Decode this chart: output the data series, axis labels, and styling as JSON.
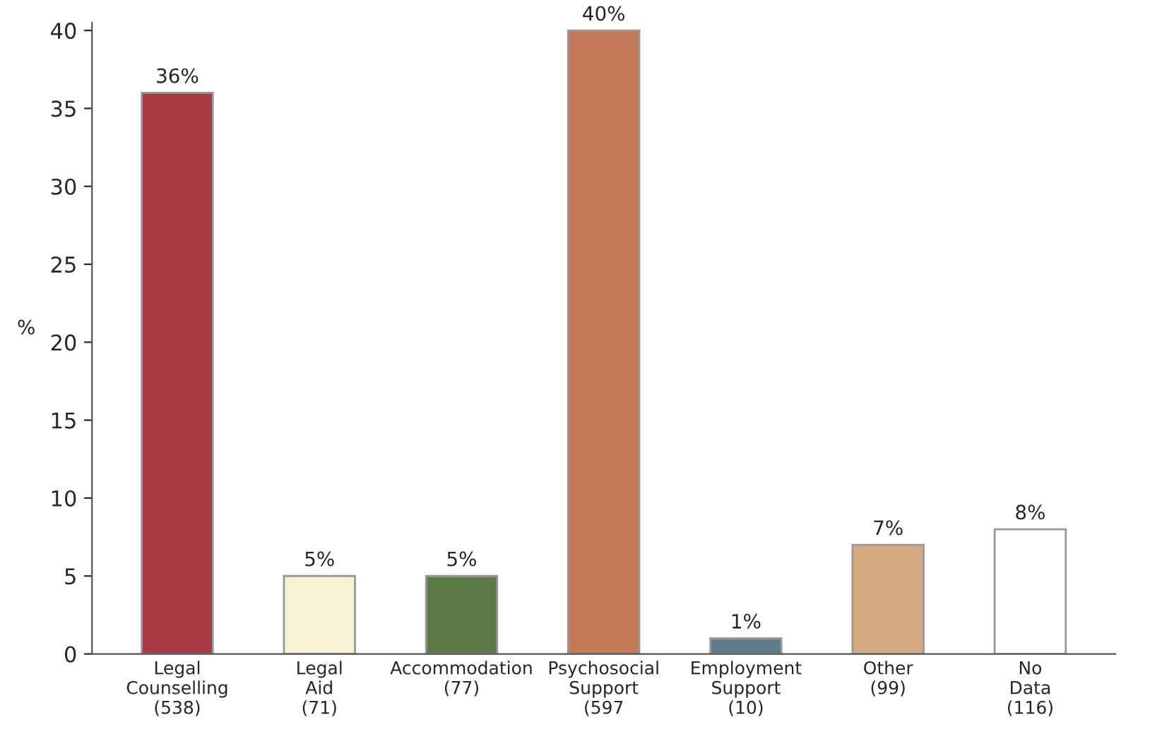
{
  "chart_data": {
    "type": "bar",
    "ylabel": "%",
    "categories": [
      "Legal\nCounselling\n(538)",
      "Legal\nAid\n(71)",
      "Accommodation\n(77)",
      "Psychosocial\nSupport\n(597",
      "Employment\nSupport\n(10)",
      "Other\n(99)",
      "No\nData\n(116)"
    ],
    "values": [
      36,
      5,
      5,
      40,
      1,
      7,
      8
    ],
    "colors": [
      "#a83a44",
      "#f7f2d2",
      "#5b7a46",
      "#c47a58",
      "#5e7c8c",
      "#d5aa80",
      "#ffffff"
    ],
    "value_labels": [
      "36%",
      "5%",
      "5%",
      "40%",
      "1%",
      "7%",
      "8%"
    ],
    "ylim": [
      0,
      40.5
    ],
    "yticks": [
      0,
      5,
      10,
      15,
      20,
      25,
      30,
      35,
      40
    ],
    "grid": false,
    "legend": false
  }
}
